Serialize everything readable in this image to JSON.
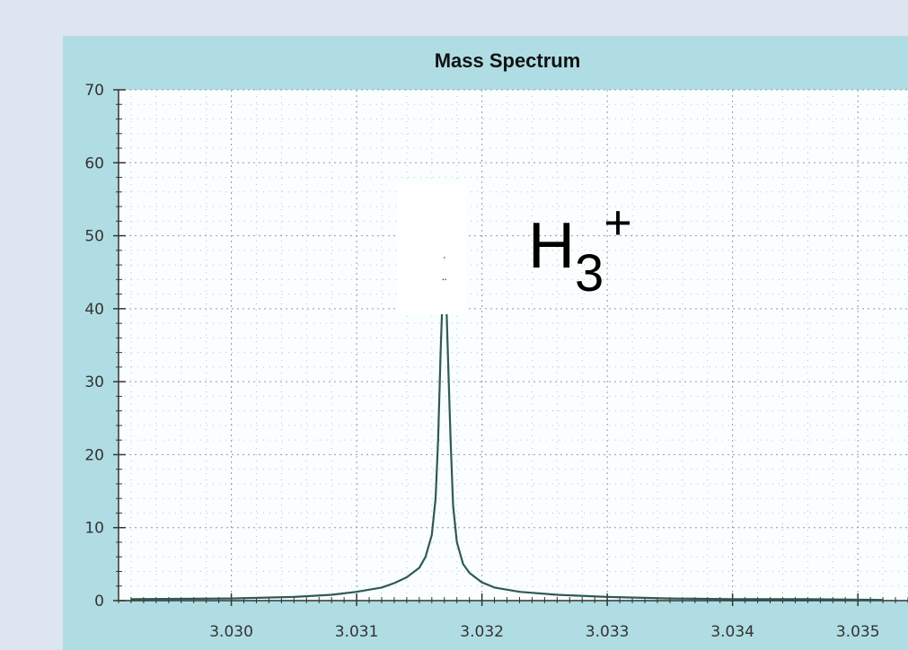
{
  "chart_data": {
    "type": "line",
    "title": "Mass Spectrum",
    "xlabel": "",
    "ylabel": "",
    "xlim": [
      3.0291,
      3.0354
    ],
    "ylim": [
      0,
      70
    ],
    "x_ticks": [
      "3.030",
      "3.031",
      "3.032",
      "3.033",
      "3.034",
      "3.035"
    ],
    "y_ticks": [
      "0",
      "10",
      "20",
      "30",
      "40",
      "50",
      "60",
      "70"
    ],
    "grid": true,
    "line_color": "#2f5a52",
    "annotation": {
      "base": "H",
      "subscript": "3",
      "superscript": "+"
    },
    "series": [
      {
        "x": [
          3.0292,
          3.03,
          3.0305,
          3.0308,
          3.031,
          3.0312,
          3.0313,
          3.0314,
          3.0315,
          3.03155,
          3.0316,
          3.03163,
          3.03165,
          3.03167,
          3.03169,
          3.0317,
          3.03171,
          3.03173,
          3.03175,
          3.03177,
          3.0318,
          3.03185,
          3.0319,
          3.032,
          3.0321,
          3.0323,
          3.0326,
          3.033,
          3.0335,
          3.034,
          3.0346,
          3.0352
        ],
        "y": [
          0.2,
          0.3,
          0.5,
          0.8,
          1.2,
          1.8,
          2.4,
          3.2,
          4.5,
          6.0,
          9.0,
          14.0,
          22.0,
          34.0,
          44.0,
          47.0,
          44.0,
          33.0,
          22.0,
          13.0,
          8.0,
          5.0,
          3.8,
          2.5,
          1.8,
          1.2,
          0.8,
          0.5,
          0.3,
          0.2,
          0.2,
          0.1
        ]
      }
    ]
  }
}
